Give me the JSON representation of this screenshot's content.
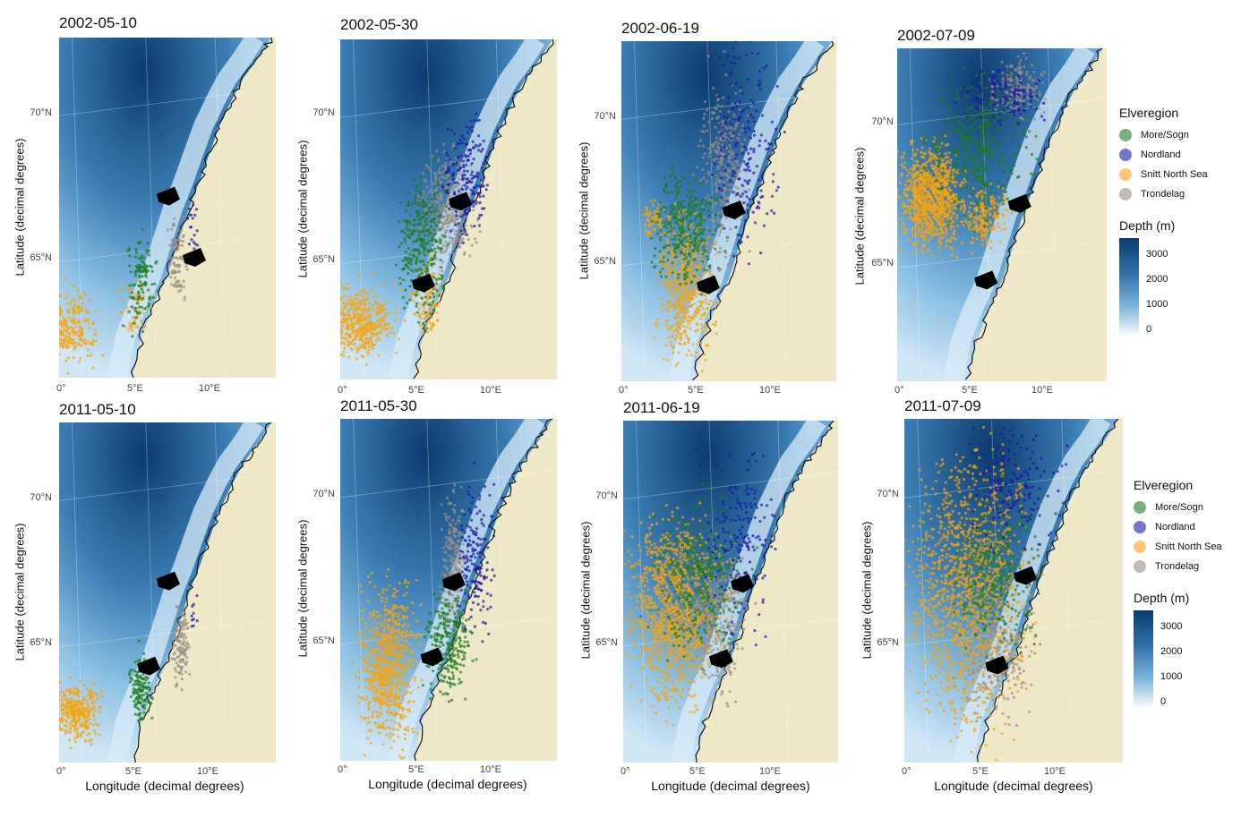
{
  "colors": {
    "more_sogn": "#1f7a1f",
    "nordland": "#1a1aa8",
    "snitt_north_sea": "#f5a40f",
    "trondelag": "#9a8d85",
    "land": "#eee8c7",
    "deep": "#0d3b6e",
    "shallow": "#cfe6f5"
  },
  "axis": {
    "xlabel": "Longitude (decimal degrees)",
    "ylabel": "Latitude (decimal degrees)",
    "xticks": [
      "0°",
      "5°E",
      "10°E"
    ],
    "yticks": [
      "70°N",
      "65°N"
    ]
  },
  "panels": [
    {
      "title": "2002-05-10"
    },
    {
      "title": "2002-05-30"
    },
    {
      "title": "2002-06-19"
    },
    {
      "title": "2002-07-09"
    },
    {
      "title": "2011-05-10"
    },
    {
      "title": "2011-05-30"
    },
    {
      "title": "2011-06-19"
    },
    {
      "title": "2011-07-09"
    }
  ],
  "legend": {
    "title": "Elveregion",
    "items": [
      {
        "label": "More/Sogn",
        "color": "#1f7a1f"
      },
      {
        "label": "Nordland",
        "color": "#1a1aa8"
      },
      {
        "label": "Snitt North Sea",
        "color": "#f5a40f"
      },
      {
        "label": "Trondelag",
        "color": "#9a8d85"
      }
    ],
    "depth_title": "Depth (m)",
    "depth_ticks": [
      "3000",
      "2000",
      "1000",
      "0"
    ]
  }
}
